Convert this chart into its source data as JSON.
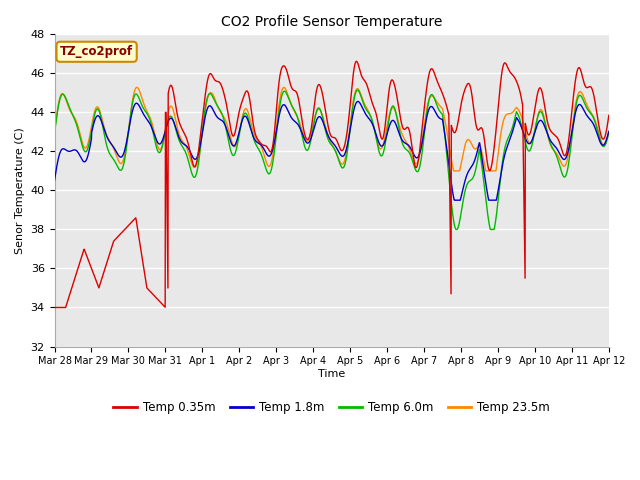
{
  "title": "CO2 Profile Sensor Temperature",
  "xlabel": "Time",
  "ylabel": "Senor Temperature (C)",
  "ylim": [
    32,
    48
  ],
  "background_color": "#e8e8e8",
  "legend_label": "TZ_co2prof",
  "legend_box_color": "#ffffcc",
  "legend_box_edge": "#cc8800",
  "series_colors": {
    "Temp 0.35m": "#dd0000",
    "Temp 1.8m": "#0000cc",
    "Temp 6.0m": "#00bb00",
    "Temp 23.5m": "#ff8800"
  },
  "tick_dates": [
    "Mar 28",
    "Mar 29",
    "Mar 30",
    "Mar 31",
    "Apr 1",
    "Apr 2",
    "Apr 3",
    "Apr 4",
    "Apr 5",
    "Apr 6",
    "Apr 7",
    "Apr 8",
    "Apr 9",
    "Apr 10",
    "Apr 11",
    "Apr 12"
  ],
  "n_days": 15,
  "seed": 42
}
